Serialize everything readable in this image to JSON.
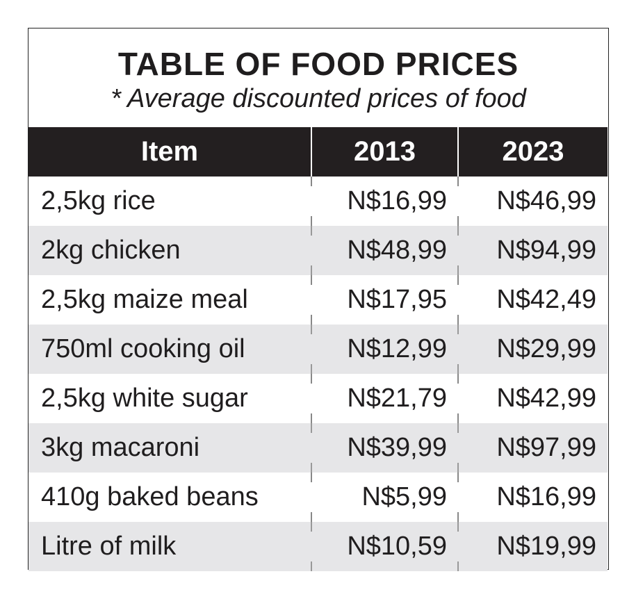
{
  "chart_data": {
    "type": "table",
    "title": "TABLE OF FOOD PRICES",
    "subtitle": "* Average discounted prices of food",
    "columns": [
      "Item",
      "2013",
      "2023"
    ],
    "rows": [
      [
        "2,5kg rice",
        "N$16,99",
        "N$46,99"
      ],
      [
        "2kg chicken",
        "N$48,99",
        "N$94,99"
      ],
      [
        "2,5kg maize meal",
        "N$17,95",
        "N$42,49"
      ],
      [
        "750ml cooking oil",
        "N$12,99",
        "N$29,99"
      ],
      [
        "2,5kg white sugar",
        "N$21,79",
        "N$42,99"
      ],
      [
        "3kg macaroni",
        "N$39,99",
        "N$97,99"
      ],
      [
        "410g baked beans",
        "N$5,99",
        "N$16,99"
      ],
      [
        "Litre of milk",
        "N$10,59",
        "N$19,99"
      ]
    ]
  },
  "colors": {
    "header_bg": "#231f20",
    "stripe_bg": "#e6e6e8",
    "text": "#1f1d1e"
  }
}
